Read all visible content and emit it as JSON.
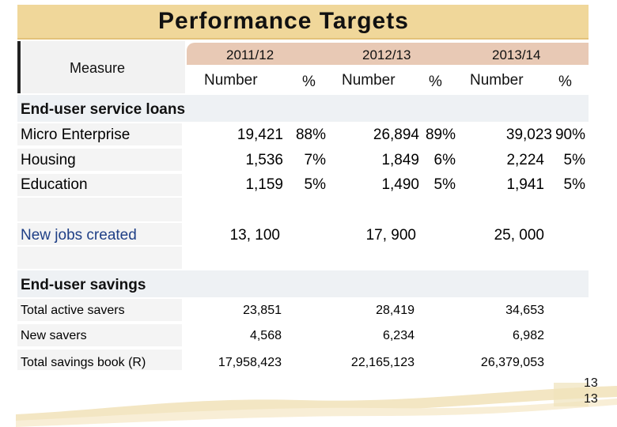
{
  "title": "Performance Targets",
  "header": {
    "measure_label": "Measure",
    "years": [
      "2011/12",
      "2012/13",
      "2013/14"
    ],
    "number_label": "Number",
    "pct_label": "%"
  },
  "sections": {
    "loans": {
      "title": "End-user service loans",
      "rows": [
        {
          "label": "Micro Enterprise",
          "v1": "19,421",
          "p1": "88%",
          "v2": "26,894",
          "p2": "89%",
          "v3": "39,023",
          "p3": "90%"
        },
        {
          "label": "Housing",
          "v1": "1,536",
          "p1": "7%",
          "v2": "1,849",
          "p2": "6%",
          "v3": "2,224",
          "p3": "5%"
        },
        {
          "label": "Education",
          "v1": "1,159",
          "p1": "5%",
          "v2": "1,490",
          "p2": "5%",
          "v3": "1,941",
          "p3": "5%"
        }
      ]
    },
    "jobs": {
      "label": "New jobs created",
      "v1": "13, 100",
      "v2": "17, 900",
      "v3": "25, 000"
    },
    "savings": {
      "title": "End-user savings",
      "rows": [
        {
          "label": "Total active savers",
          "v1": "23,851",
          "v2": "28,419",
          "v3": "34,653"
        },
        {
          "label": "New savers",
          "v1": "4,568",
          "v2": "6,234",
          "v3": "6,982"
        },
        {
          "label": "Total savings book (R)",
          "v1": "17,958,423",
          "v2": "22,165,123",
          "v3": "26,379,053"
        }
      ]
    }
  },
  "page_number": [
    "13",
    "13"
  ],
  "colors": {
    "title_band": "#f0d79a",
    "year_header": "#e8c9b5",
    "jobs_label": "#1f3f86",
    "decor": "#f3e6c3"
  }
}
